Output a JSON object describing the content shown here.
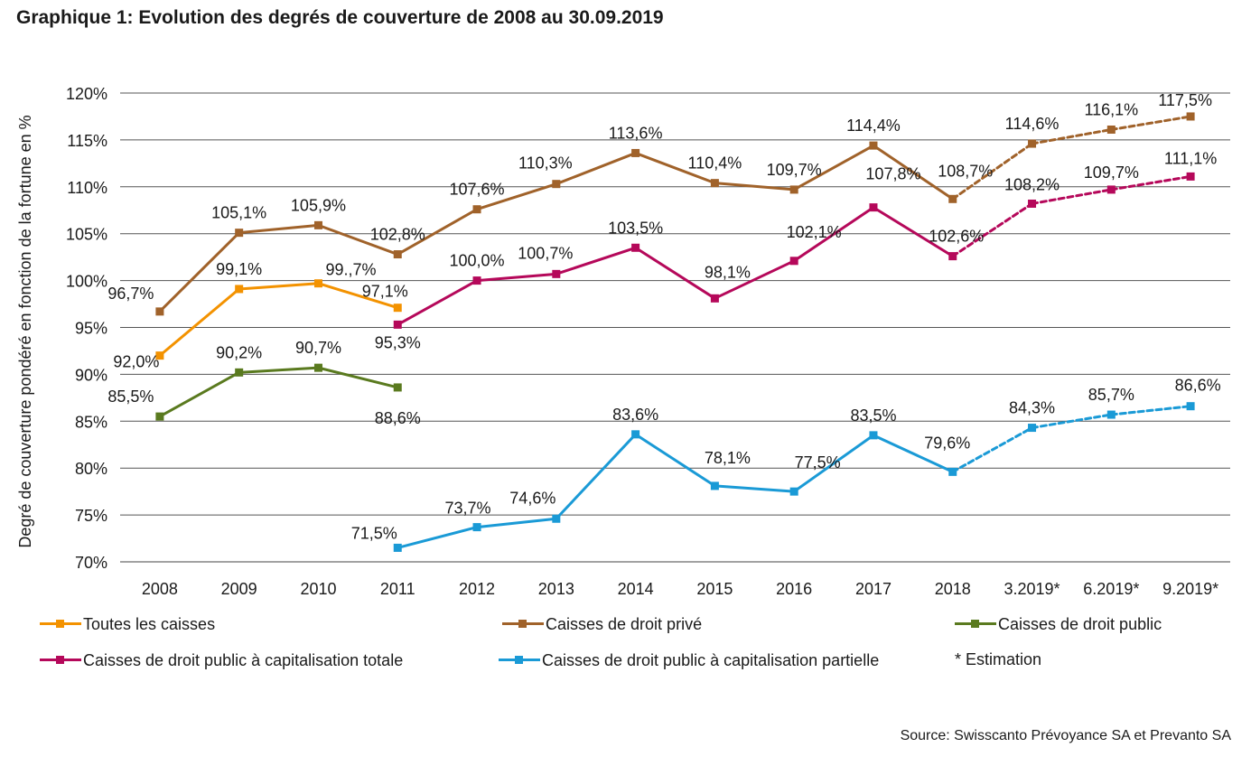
{
  "chart_title": "Graphique 1: Evolution des degrés de couverture de 2008 au 30.09.2019",
  "source": "Source: Swisscanto Prévoyance SA et Prevanto SA",
  "legend_note": "* Estimation",
  "chart_data": {
    "type": "line",
    "ylabel": "Degré de couverture pondéré en fonction de la fortune en %",
    "ylim": [
      70,
      120
    ],
    "y_ticks": [
      "70%",
      "75%",
      "80%",
      "85%",
      "90%",
      "95%",
      "100%",
      "105%",
      "110%",
      "115%",
      "120%"
    ],
    "categories": [
      "2008",
      "2009",
      "2010",
      "2011",
      "2012",
      "2013",
      "2014",
      "2015",
      "2016",
      "2017",
      "2018",
      "3.2019*",
      "6.2019*",
      "9.2019*"
    ],
    "grid": "horizontal",
    "legend_position": "bottom",
    "series": [
      {
        "name": "Toutes les caisses",
        "color": "#f39200",
        "values": [
          92.0,
          99.1,
          99.7,
          97.1,
          null,
          null,
          null,
          null,
          null,
          null,
          null,
          null,
          null,
          null
        ],
        "labels": [
          "92,0%",
          "99,1%",
          "99.,7%",
          "97,1%",
          null,
          null,
          null,
          null,
          null,
          null,
          null,
          null,
          null,
          null
        ]
      },
      {
        "name": "Caisses de droit privé",
        "color": "#a0622a",
        "values": [
          96.7,
          105.1,
          105.9,
          102.8,
          107.6,
          110.3,
          113.6,
          110.4,
          109.7,
          114.4,
          108.7,
          114.6,
          116.1,
          117.5
        ],
        "labels": [
          "96,7%",
          "105,1%",
          "105,9%",
          "102,8%",
          "107,6%",
          "110,3%",
          "113,6%",
          "110,4%",
          "109,7%",
          "114,4%",
          "108,7%",
          "114,6%",
          "116,1%",
          "117,5%"
        ]
      },
      {
        "name": "Caisses de droit public",
        "color": "#5a7a1f",
        "values": [
          85.5,
          90.2,
          90.7,
          88.6,
          null,
          null,
          null,
          null,
          null,
          null,
          null,
          null,
          null,
          null
        ],
        "labels": [
          "85,5%",
          "90,2%",
          "90,7%",
          "88,6%",
          null,
          null,
          null,
          null,
          null,
          null,
          null,
          null,
          null,
          null
        ]
      },
      {
        "name": "Caisses de droit public à capitalisation totale",
        "color": "#b5085a",
        "values": [
          null,
          null,
          null,
          95.3,
          100.0,
          100.7,
          103.5,
          98.1,
          102.1,
          107.8,
          102.6,
          108.2,
          109.7,
          111.1
        ],
        "labels": [
          null,
          null,
          null,
          "95,3%",
          "100,0%",
          "100,7%",
          "103,5%",
          "98,1%",
          "102,1%",
          "107,8%",
          "102,6%",
          "108,2%",
          "109,7%",
          "111,1%"
        ]
      },
      {
        "name": "Caisses de droit public à capitalisation partielle",
        "color": "#1a9ad6",
        "values": [
          null,
          null,
          null,
          71.5,
          73.7,
          74.6,
          83.6,
          78.1,
          77.5,
          83.5,
          79.6,
          84.3,
          85.7,
          86.6
        ],
        "labels": [
          null,
          null,
          null,
          "71,5%",
          "73,7%",
          "74,6%",
          "83,6%",
          "78,1%",
          "77,5%",
          "83,5%",
          "79,6%",
          "84,3%",
          "85,7%",
          "86,6%"
        ]
      }
    ],
    "estimated_from_index": 10
  }
}
